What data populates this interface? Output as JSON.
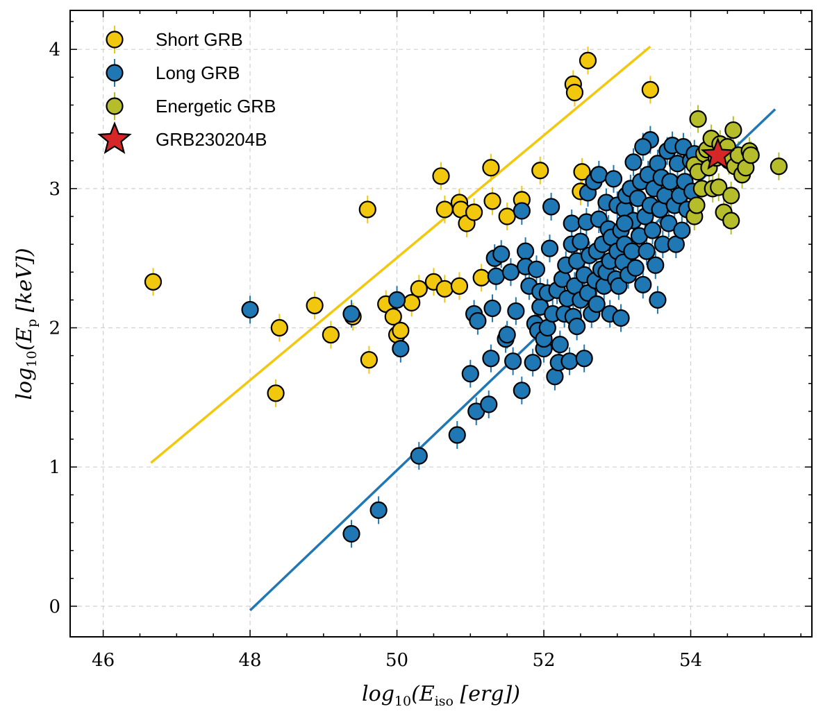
{
  "chart_data": {
    "type": "scatter",
    "xlabel": "log10(Eiso [erg])",
    "ylabel": "log10(Ep [keV])",
    "xlabel_parts": {
      "base": "log",
      "sub": "10",
      "open": "(E",
      "var_sub": "iso",
      "unit": " [erg])"
    },
    "ylabel_parts": {
      "base": "log",
      "sub": "10",
      "open": "(E",
      "var_sub": "p",
      "unit": " [keV])"
    },
    "xlim": [
      45.55,
      55.65
    ],
    "ylim": [
      -0.22,
      4.28
    ],
    "xticks": [
      46,
      48,
      50,
      52,
      54
    ],
    "yticks": [
      0,
      1,
      2,
      3,
      4
    ],
    "grid": true,
    "legend_position": "top-left",
    "colors": {
      "short": "#f2c80f",
      "long": "#1f77b4",
      "energetic": "#b5bd2b",
      "target": "#d62728",
      "grid": "#d0d0d0"
    },
    "series": [
      {
        "name": "Short GRB",
        "marker": "circle",
        "color": "#f2c80f",
        "points": [
          [
            46.68,
            2.33
          ],
          [
            48.35,
            1.53
          ],
          [
            48.4,
            2.0
          ],
          [
            48.88,
            2.16
          ],
          [
            49.1,
            1.95
          ],
          [
            49.4,
            2.08
          ],
          [
            49.6,
            2.85
          ],
          [
            49.62,
            1.77
          ],
          [
            49.85,
            2.17
          ],
          [
            49.95,
            2.08
          ],
          [
            50.0,
            1.95
          ],
          [
            50.05,
            1.98
          ],
          [
            50.2,
            2.18
          ],
          [
            50.3,
            2.28
          ],
          [
            50.5,
            2.33
          ],
          [
            50.6,
            3.09
          ],
          [
            50.65,
            2.28
          ],
          [
            50.65,
            2.85
          ],
          [
            50.85,
            2.3
          ],
          [
            50.85,
            2.9
          ],
          [
            50.87,
            2.85
          ],
          [
            50.95,
            2.75
          ],
          [
            51.05,
            2.83
          ],
          [
            51.15,
            2.36
          ],
          [
            51.28,
            3.15
          ],
          [
            51.3,
            2.91
          ],
          [
            51.5,
            2.8
          ],
          [
            51.7,
            2.92
          ],
          [
            51.95,
            3.13
          ],
          [
            52.4,
            3.75
          ],
          [
            52.42,
            3.69
          ],
          [
            52.5,
            2.98
          ],
          [
            52.52,
            3.12
          ],
          [
            52.6,
            3.92
          ],
          [
            53.45,
            3.71
          ]
        ],
        "fit_line": [
          [
            46.65,
            1.03
          ],
          [
            53.45,
            4.02
          ]
        ]
      },
      {
        "name": "Long GRB",
        "marker": "circle",
        "color": "#1f77b4",
        "points": [
          [
            48.0,
            2.13
          ],
          [
            49.38,
            0.52
          ],
          [
            49.38,
            2.1
          ],
          [
            49.75,
            0.69
          ],
          [
            50.0,
            2.2
          ],
          [
            50.05,
            1.85
          ],
          [
            50.3,
            1.08
          ],
          [
            50.82,
            1.23
          ],
          [
            51.0,
            1.67
          ],
          [
            51.05,
            2.1
          ],
          [
            51.08,
            1.4
          ],
          [
            51.1,
            2.05
          ],
          [
            51.25,
            1.45
          ],
          [
            51.28,
            1.78
          ],
          [
            51.3,
            2.14
          ],
          [
            51.33,
            2.5
          ],
          [
            51.35,
            2.37
          ],
          [
            51.42,
            2.53
          ],
          [
            51.48,
            1.92
          ],
          [
            51.5,
            1.95
          ],
          [
            51.55,
            2.4
          ],
          [
            51.58,
            1.76
          ],
          [
            51.62,
            2.12
          ],
          [
            51.7,
            1.55
          ],
          [
            51.7,
            2.84
          ],
          [
            51.75,
            2.55
          ],
          [
            51.75,
            2.44
          ],
          [
            51.8,
            2.3
          ],
          [
            51.85,
            1.75
          ],
          [
            51.88,
            2.03
          ],
          [
            51.9,
            2.42
          ],
          [
            51.92,
            1.98
          ],
          [
            51.95,
            2.15
          ],
          [
            51.95,
            2.26
          ],
          [
            52.0,
            1.85
          ],
          [
            52.0,
            1.92
          ],
          [
            52.05,
            2.0
          ],
          [
            52.05,
            2.25
          ],
          [
            52.08,
            2.57
          ],
          [
            52.1,
            2.87
          ],
          [
            52.12,
            2.1
          ],
          [
            52.15,
            1.65
          ],
          [
            52.18,
            2.27
          ],
          [
            52.2,
            1.75
          ],
          [
            52.22,
            1.88
          ],
          [
            52.25,
            2.35
          ],
          [
            52.28,
            2.1
          ],
          [
            52.3,
            2.45
          ],
          [
            52.32,
            2.21
          ],
          [
            52.35,
            1.76
          ],
          [
            52.38,
            2.6
          ],
          [
            52.38,
            2.75
          ],
          [
            52.4,
            2.08
          ],
          [
            52.42,
            2.3
          ],
          [
            52.45,
            2.48
          ],
          [
            52.45,
            2.01
          ],
          [
            52.5,
            2.2
          ],
          [
            52.5,
            2.62
          ],
          [
            52.55,
            2.38
          ],
          [
            52.55,
            1.78
          ],
          [
            52.58,
            2.76
          ],
          [
            52.6,
            2.25
          ],
          [
            52.6,
            2.97
          ],
          [
            52.62,
            2.52
          ],
          [
            52.65,
            2.1
          ],
          [
            52.68,
            3.05
          ],
          [
            52.7,
            2.34
          ],
          [
            52.72,
            2.55
          ],
          [
            52.72,
            2.17
          ],
          [
            52.75,
            2.78
          ],
          [
            52.75,
            3.1
          ],
          [
            52.78,
            2.42
          ],
          [
            52.8,
            2.6
          ],
          [
            52.82,
            2.3
          ],
          [
            52.85,
            2.4
          ],
          [
            52.85,
            2.9
          ],
          [
            52.88,
            2.71
          ],
          [
            52.9,
            2.48
          ],
          [
            52.9,
            2.1
          ],
          [
            52.92,
            2.65
          ],
          [
            52.95,
            3.07
          ],
          [
            52.98,
            2.35
          ],
          [
            53.0,
            2.55
          ],
          [
            53.0,
            2.88
          ],
          [
            53.02,
            2.3
          ],
          [
            53.05,
            2.7
          ],
          [
            53.05,
            2.07
          ],
          [
            53.08,
            2.47
          ],
          [
            53.1,
            2.85
          ],
          [
            53.1,
            2.6
          ],
          [
            53.12,
            2.95
          ],
          [
            53.15,
            2.38
          ],
          [
            53.18,
            3.0
          ],
          [
            53.2,
            2.55
          ],
          [
            53.22,
            2.77
          ],
          [
            53.22,
            3.19
          ],
          [
            53.25,
            2.43
          ],
          [
            53.28,
            2.93
          ],
          [
            53.3,
            2.66
          ],
          [
            53.32,
            3.05
          ],
          [
            53.35,
            2.31
          ],
          [
            53.38,
            2.8
          ],
          [
            53.4,
            2.55
          ],
          [
            53.42,
            3.1
          ],
          [
            53.45,
            2.88
          ],
          [
            53.45,
            3.35
          ],
          [
            53.48,
            2.7
          ],
          [
            53.5,
            3.0
          ],
          [
            53.52,
            2.45
          ],
          [
            53.55,
            2.2
          ],
          [
            53.55,
            3.18
          ],
          [
            53.58,
            2.85
          ],
          [
            53.6,
            3.08
          ],
          [
            53.62,
            2.6
          ],
          [
            53.65,
            2.95
          ],
          [
            53.68,
            3.27
          ],
          [
            53.7,
            2.75
          ],
          [
            53.72,
            3.05
          ],
          [
            53.75,
            3.31
          ],
          [
            53.78,
            2.88
          ],
          [
            53.8,
            2.6
          ],
          [
            53.82,
            3.18
          ],
          [
            53.85,
            2.95
          ],
          [
            53.88,
            2.7
          ],
          [
            53.9,
            3.3
          ],
          [
            53.92,
            3.05
          ],
          [
            53.95,
            2.85
          ],
          [
            54.0,
            3.2
          ],
          [
            54.02,
            2.98
          ],
          [
            54.05,
            3.25
          ],
          [
            53.35,
            3.3
          ],
          [
            53.1,
            2.75
          ]
        ],
        "fit_line": [
          [
            48.0,
            -0.03
          ],
          [
            55.15,
            3.57
          ]
        ]
      },
      {
        "name": "Energetic GRB",
        "marker": "circle",
        "color": "#b5bd2b",
        "points": [
          [
            54.05,
            2.8
          ],
          [
            54.05,
            3.17
          ],
          [
            54.08,
            2.88
          ],
          [
            54.1,
            3.12
          ],
          [
            54.1,
            3.5
          ],
          [
            54.15,
            3.0
          ],
          [
            54.18,
            3.25
          ],
          [
            54.22,
            3.28
          ],
          [
            54.25,
            3.15
          ],
          [
            54.28,
            3.36
          ],
          [
            54.3,
            3.0
          ],
          [
            54.35,
            3.22
          ],
          [
            54.38,
            3.01
          ],
          [
            54.4,
            3.32
          ],
          [
            54.45,
            2.83
          ],
          [
            54.5,
            3.3
          ],
          [
            54.52,
            3.2
          ],
          [
            54.55,
            2.95
          ],
          [
            54.55,
            2.77
          ],
          [
            54.58,
            3.42
          ],
          [
            54.6,
            3.16
          ],
          [
            54.65,
            3.24
          ],
          [
            54.7,
            3.1
          ],
          [
            54.75,
            3.15
          ],
          [
            54.8,
            3.27
          ],
          [
            54.82,
            3.24
          ],
          [
            55.2,
            3.16
          ]
        ]
      },
      {
        "name": "GRB230204B",
        "marker": "star",
        "color": "#d62728",
        "points": [
          [
            54.37,
            3.24
          ]
        ]
      }
    ]
  }
}
